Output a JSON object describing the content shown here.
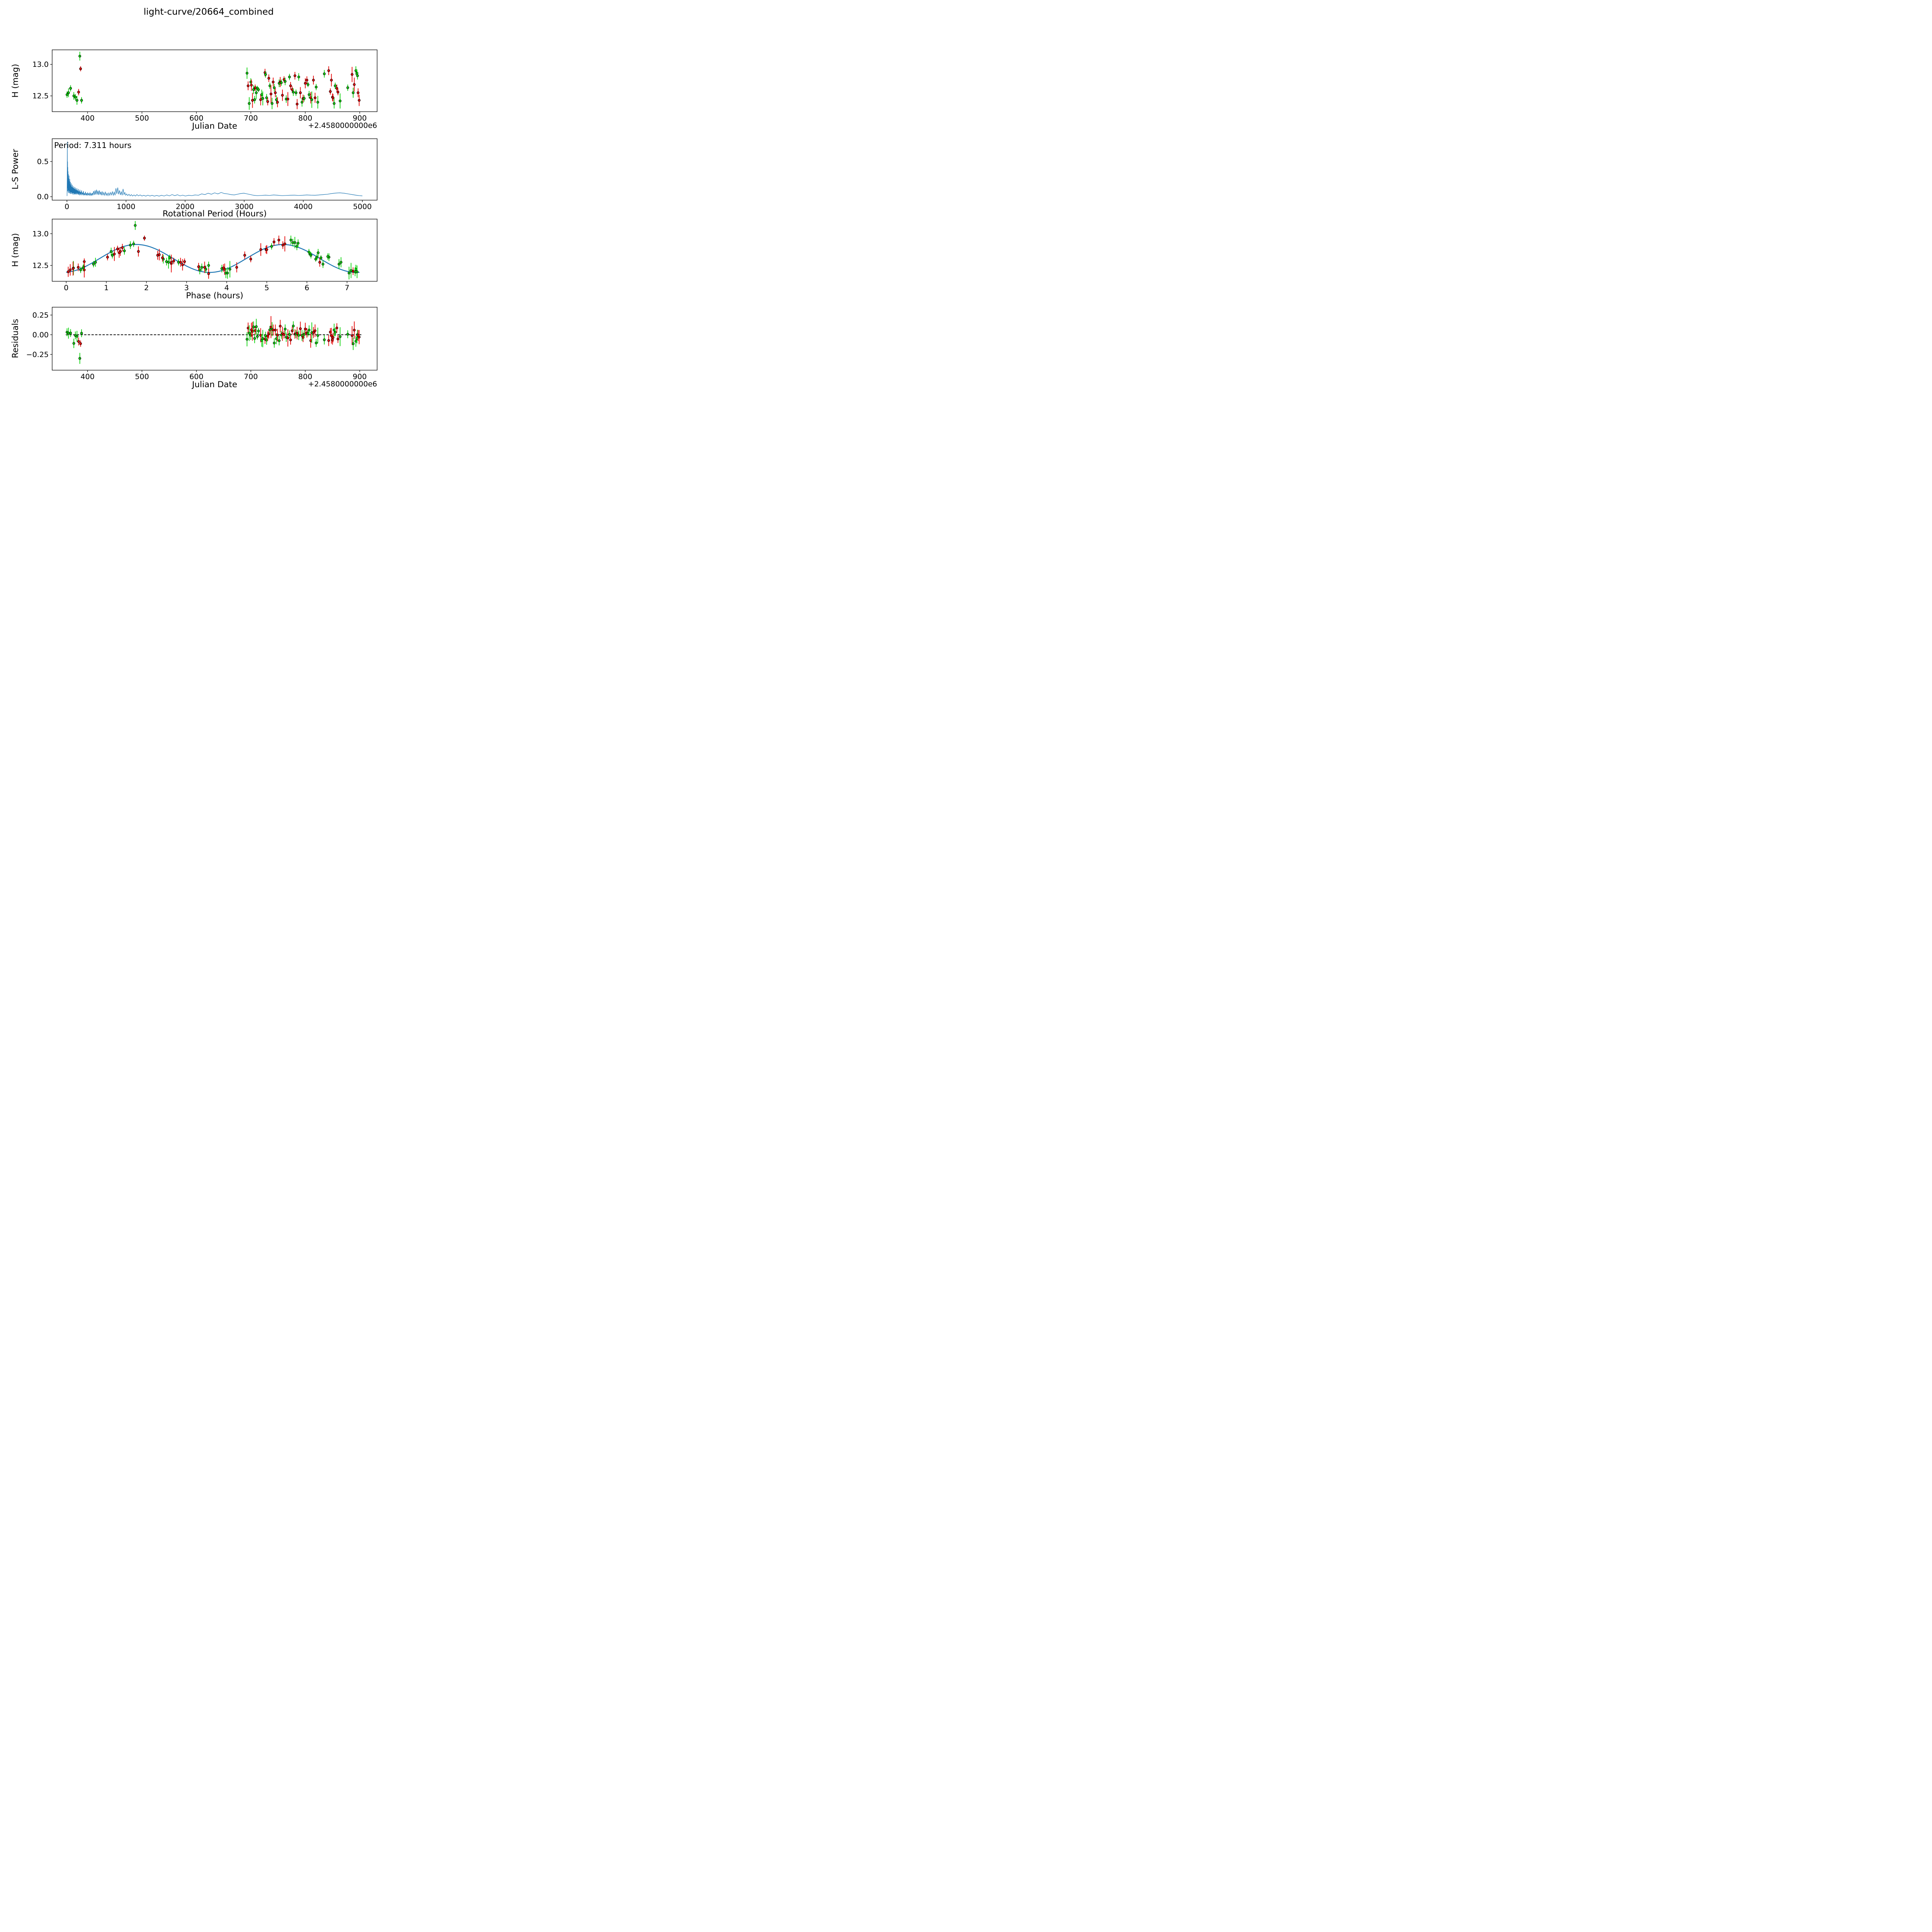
{
  "title": "light-curve/20664_combined",
  "colors": {
    "g": "#0bd30b",
    "r": "#e60000",
    "fit": "#1f77b4",
    "zero_line": "#000000",
    "marker_edge": "#000000",
    "axis": "#000000"
  },
  "marker": {
    "radius": 3,
    "edge_width": 1.0,
    "errorbar_width": 1.8
  },
  "chart_data": {
    "figure_title": "light-curve/20664_combined",
    "panels": [
      {
        "id": "jd_lightcurve",
        "type": "scatter",
        "xlabel": "Julian Date",
        "ylabel": "H (mag)",
        "x_offset_label": "+2.4580000000e6",
        "xlim": [
          335,
          932
        ],
        "ylim": [
          12.25,
          13.23
        ],
        "xticks": [
          400,
          500,
          600,
          700,
          800,
          900
        ],
        "xticklabels": [
          "400",
          "500",
          "600",
          "700",
          "800",
          "900"
        ],
        "yticks": [
          12.5,
          13.0
        ],
        "yticklabels": [
          "12.5",
          "13.0"
        ],
        "grid": false
      },
      {
        "id": "periodogram",
        "type": "line",
        "xlabel": "Rotational Period (Hours)",
        "ylabel": "L-S Power",
        "annotation": "Period: 7.311 hours",
        "xlim": [
          -250,
          5250
        ],
        "ylim": [
          -0.049,
          0.824
        ],
        "xticks": [
          0,
          1000,
          2000,
          3000,
          4000,
          5000
        ],
        "xticklabels": [
          "0",
          "1000",
          "2000",
          "3000",
          "4000",
          "5000"
        ],
        "yticks": [
          0.0,
          0.5
        ],
        "yticklabels": [
          "0.0",
          "0.5"
        ],
        "grid": false
      },
      {
        "id": "phase_lightcurve",
        "type": "scatter+fit",
        "xlabel": "Phase (hours)",
        "ylabel": "H (mag)",
        "xlim": [
          -0.35,
          7.75
        ],
        "ylim": [
          12.25,
          13.23
        ],
        "xticks": [
          0,
          1,
          2,
          3,
          4,
          5,
          6,
          7
        ],
        "xticklabels": [
          "0",
          "1",
          "2",
          "3",
          "4",
          "5",
          "6",
          "7"
        ],
        "yticks": [
          12.5,
          13.0
        ],
        "yticklabels": [
          "12.5",
          "13.0"
        ],
        "grid": false
      },
      {
        "id": "residuals",
        "type": "scatter",
        "xlabel": "Julian Date",
        "ylabel": "Residuals",
        "x_offset_label": "+2.4580000000e6",
        "xlim": [
          335,
          932
        ],
        "ylim": [
          -0.45,
          0.35
        ],
        "xticks": [
          400,
          500,
          600,
          700,
          800,
          900
        ],
        "xticklabels": [
          "400",
          "500",
          "600",
          "700",
          "800",
          "900"
        ],
        "yticks": [
          -0.25,
          0.0,
          0.25
        ],
        "yticklabels": [
          "−0.25",
          "0.00",
          "0.25"
        ],
        "zero_line": true,
        "zero_line_span_jd": [
          360,
          903
        ],
        "grid": false
      }
    ],
    "fit_model": {
      "mean_mag": 12.61,
      "amplitude_mag": 0.22,
      "period_hours": 7.311,
      "peak_phase_hours": 1.75,
      "cycles_per_period": 2,
      "note": "H(phase)=mean+A*cos(2*pi*cycles*(phase-peak)/period); residual plotted = model - mag"
    },
    "observations": [
      [
        362.3,
        0.68,
        12.52,
        0.05,
        "g"
      ],
      [
        365.0,
        0.73,
        12.55,
        0.07,
        "g"
      ],
      [
        368.8,
        2.58,
        12.62,
        0.05,
        "g"
      ],
      [
        374.8,
        3.55,
        12.5,
        0.06,
        "g"
      ],
      [
        377.6,
        0.44,
        12.48,
        0.05,
        "g"
      ],
      [
        380.6,
        3.33,
        12.43,
        0.07,
        "g"
      ],
      [
        383.6,
        0.45,
        12.56,
        0.05,
        "r"
      ],
      [
        385.8,
        1.72,
        13.13,
        0.07,
        "g"
      ],
      [
        387.2,
        1.95,
        12.93,
        0.04,
        "r"
      ],
      [
        389.0,
        0.36,
        12.43,
        0.05,
        "g"
      ],
      [
        693,
        5.7,
        12.86,
        0.09,
        "g"
      ],
      [
        695,
        2.28,
        12.66,
        0.07,
        "r"
      ],
      [
        697,
        7.05,
        12.38,
        0.1,
        "g"
      ],
      [
        700,
        1.12,
        12.72,
        0.06,
        "g"
      ],
      [
        701,
        2.32,
        12.67,
        0.09,
        "r"
      ],
      [
        703,
        0.45,
        12.43,
        0.12,
        "r"
      ],
      [
        705,
        2.42,
        12.6,
        0.07,
        "g"
      ],
      [
        707,
        3.48,
        12.44,
        0.06,
        "g"
      ],
      [
        708,
        1.03,
        12.63,
        0.05,
        "r"
      ],
      [
        710,
        2.55,
        12.55,
        0.1,
        "g"
      ],
      [
        712,
        6.35,
        12.62,
        0.04,
        "g"
      ],
      [
        714,
        6.22,
        12.6,
        0.04,
        "g"
      ],
      [
        718,
        3.95,
        12.44,
        0.09,
        "r"
      ],
      [
        720,
        6.8,
        12.52,
        0.08,
        "g"
      ],
      [
        722,
        0.18,
        12.46,
        0.11,
        "g"
      ],
      [
        726,
        5.18,
        12.87,
        0.06,
        "r"
      ],
      [
        727,
        1.68,
        12.84,
        0.05,
        "g"
      ],
      [
        729,
        3.38,
        12.47,
        0.06,
        "g"
      ],
      [
        731,
        7.15,
        12.41,
        0.06,
        "r"
      ],
      [
        733,
        1.4,
        12.78,
        0.06,
        "r"
      ],
      [
        735,
        1.15,
        12.66,
        0.05,
        "g"
      ],
      [
        737,
        2.62,
        12.53,
        0.14,
        "r"
      ],
      [
        739,
        4.02,
        12.38,
        0.09,
        "g"
      ],
      [
        741,
        1.35,
        12.72,
        0.07,
        "r"
      ],
      [
        743,
        6.55,
        12.63,
        0.06,
        "g"
      ],
      [
        745,
        6.32,
        12.55,
        0.07,
        "r"
      ],
      [
        747,
        7.22,
        12.44,
        0.07,
        "g"
      ],
      [
        749,
        0.05,
        12.4,
        0.08,
        "r"
      ],
      [
        752,
        6.28,
        12.7,
        0.06,
        "g"
      ],
      [
        754,
        1.8,
        12.72,
        0.08,
        "r"
      ],
      [
        756,
        6.05,
        12.71,
        0.05,
        "g"
      ],
      [
        758,
        2.9,
        12.51,
        0.09,
        "r"
      ],
      [
        761,
        1.28,
        12.76,
        0.05,
        "r"
      ],
      [
        763,
        1.45,
        12.73,
        0.06,
        "g"
      ],
      [
        765,
        3.88,
        12.45,
        0.06,
        "g"
      ],
      [
        768,
        0.17,
        12.45,
        0.11,
        "r"
      ],
      [
        771,
        5.12,
        12.8,
        0.05,
        "g"
      ],
      [
        773,
        4.45,
        12.66,
        0.06,
        "r"
      ],
      [
        776,
        4.6,
        12.6,
        0.05,
        "r"
      ],
      [
        778,
        2.5,
        12.56,
        0.06,
        "g"
      ],
      [
        781,
        5.4,
        12.82,
        0.06,
        "r"
      ],
      [
        783,
        2.8,
        12.55,
        0.05,
        "g"
      ],
      [
        785,
        3.55,
        12.37,
        0.08,
        "r"
      ],
      [
        788,
        5.75,
        12.8,
        0.06,
        "g"
      ],
      [
        791,
        2.62,
        12.55,
        0.09,
        "r"
      ],
      [
        794,
        7.2,
        12.4,
        0.07,
        "g"
      ],
      [
        796,
        3.92,
        12.46,
        0.06,
        "r"
      ],
      [
        798,
        0.42,
        12.46,
        0.05,
        "g"
      ],
      [
        800,
        1.32,
        12.7,
        0.08,
        "r"
      ],
      [
        803,
        4.98,
        12.75,
        0.06,
        "r"
      ],
      [
        805,
        6.08,
        12.68,
        0.04,
        "g"
      ],
      [
        807,
        6.4,
        12.52,
        0.06,
        "g"
      ],
      [
        810,
        3.45,
        12.47,
        0.09,
        "r"
      ],
      [
        812,
        4.08,
        12.44,
        0.13,
        "g"
      ],
      [
        815,
        5.0,
        12.75,
        0.07,
        "r"
      ],
      [
        818,
        4.25,
        12.47,
        0.08,
        "r"
      ],
      [
        820,
        6.52,
        12.64,
        0.05,
        "g"
      ],
      [
        823,
        7.25,
        12.4,
        0.1,
        "g"
      ],
      [
        835,
        5.78,
        12.85,
        0.06,
        "g"
      ],
      [
        843,
        5.3,
        12.9,
        0.07,
        "r"
      ],
      [
        846,
        2.68,
        12.57,
        0.05,
        "r"
      ],
      [
        848,
        4.85,
        12.75,
        0.1,
        "r"
      ],
      [
        850,
        3.3,
        12.48,
        0.06,
        "r"
      ],
      [
        851,
        0.3,
        12.47,
        0.06,
        "r"
      ],
      [
        853,
        3.98,
        12.38,
        0.08,
        "g"
      ],
      [
        855,
        6.1,
        12.66,
        0.05,
        "g"
      ],
      [
        858,
        2.4,
        12.62,
        0.06,
        "r"
      ],
      [
        860,
        2.95,
        12.56,
        0.05,
        "r"
      ],
      [
        864,
        7.1,
        12.42,
        0.12,
        "g"
      ],
      [
        878,
        6.25,
        12.63,
        0.05,
        "g"
      ],
      [
        886,
        5.45,
        12.84,
        0.12,
        "r"
      ],
      [
        888,
        6.85,
        12.55,
        0.08,
        "g"
      ],
      [
        890,
        1.2,
        12.68,
        0.11,
        "r"
      ],
      [
        893,
        5.6,
        12.9,
        0.07,
        "g"
      ],
      [
        895,
        5.65,
        12.86,
        0.06,
        "g"
      ],
      [
        896,
        1.6,
        12.82,
        0.06,
        "g"
      ],
      [
        897,
        2.85,
        12.55,
        0.07,
        "r"
      ],
      [
        899,
        0.1,
        12.43,
        0.09,
        "r"
      ]
    ],
    "periodogram_xy": [
      [
        2,
        0.01
      ],
      [
        5,
        0.28
      ],
      [
        7,
        0.78
      ],
      [
        9,
        0.12
      ],
      [
        11,
        0.5
      ],
      [
        13,
        0.08
      ],
      [
        15,
        0.42
      ],
      [
        17,
        0.1
      ],
      [
        19,
        0.36
      ],
      [
        21,
        0.06
      ],
      [
        24,
        0.32
      ],
      [
        27,
        0.09
      ],
      [
        30,
        0.26
      ],
      [
        33,
        0.05
      ],
      [
        36,
        0.3
      ],
      [
        39,
        0.08
      ],
      [
        42,
        0.22
      ],
      [
        45,
        0.05
      ],
      [
        48,
        0.25
      ],
      [
        51,
        0.07
      ],
      [
        54,
        0.18
      ],
      [
        57,
        0.04
      ],
      [
        60,
        0.21
      ],
      [
        63,
        0.06
      ],
      [
        66,
        0.16
      ],
      [
        70,
        0.04
      ],
      [
        74,
        0.19
      ],
      [
        78,
        0.06
      ],
      [
        82,
        0.14
      ],
      [
        86,
        0.04
      ],
      [
        90,
        0.17
      ],
      [
        94,
        0.05
      ],
      [
        98,
        0.13
      ],
      [
        102,
        0.03
      ],
      [
        106,
        0.15
      ],
      [
        110,
        0.05
      ],
      [
        115,
        0.12
      ],
      [
        120,
        0.03
      ],
      [
        125,
        0.14
      ],
      [
        130,
        0.04
      ],
      [
        135,
        0.11
      ],
      [
        140,
        0.03
      ],
      [
        145,
        0.13
      ],
      [
        150,
        0.04
      ],
      [
        156,
        0.1
      ],
      [
        162,
        0.03
      ],
      [
        168,
        0.12
      ],
      [
        174,
        0.04
      ],
      [
        180,
        0.09
      ],
      [
        186,
        0.03
      ],
      [
        192,
        0.11
      ],
      [
        198,
        0.03
      ],
      [
        205,
        0.08
      ],
      [
        212,
        0.02
      ],
      [
        219,
        0.1
      ],
      [
        226,
        0.03
      ],
      [
        233,
        0.07
      ],
      [
        240,
        0.02
      ],
      [
        248,
        0.09
      ],
      [
        256,
        0.03
      ],
      [
        264,
        0.06
      ],
      [
        272,
        0.02
      ],
      [
        280,
        0.08
      ],
      [
        288,
        0.02
      ],
      [
        296,
        0.05
      ],
      [
        305,
        0.02
      ],
      [
        314,
        0.07
      ],
      [
        323,
        0.02
      ],
      [
        332,
        0.05
      ],
      [
        341,
        0.015
      ],
      [
        350,
        0.06
      ],
      [
        360,
        0.02
      ],
      [
        370,
        0.05
      ],
      [
        380,
        0.015
      ],
      [
        390,
        0.06
      ],
      [
        400,
        0.02
      ],
      [
        410,
        0.045
      ],
      [
        420,
        0.015
      ],
      [
        430,
        0.055
      ],
      [
        440,
        0.02
      ],
      [
        452,
        0.08
      ],
      [
        464,
        0.025
      ],
      [
        476,
        0.09
      ],
      [
        488,
        0.03
      ],
      [
        500,
        0.1
      ],
      [
        512,
        0.03
      ],
      [
        524,
        0.085
      ],
      [
        536,
        0.025
      ],
      [
        548,
        0.09
      ],
      [
        560,
        0.03
      ],
      [
        572,
        0.07
      ],
      [
        584,
        0.02
      ],
      [
        596,
        0.075
      ],
      [
        610,
        0.02
      ],
      [
        624,
        0.06
      ],
      [
        638,
        0.02
      ],
      [
        652,
        0.065
      ],
      [
        666,
        0.02
      ],
      [
        680,
        0.05
      ],
      [
        695,
        0.015
      ],
      [
        710,
        0.055
      ],
      [
        725,
        0.02
      ],
      [
        740,
        0.06
      ],
      [
        755,
        0.025
      ],
      [
        770,
        0.07
      ],
      [
        785,
        0.02
      ],
      [
        800,
        0.065
      ],
      [
        815,
        0.02
      ],
      [
        830,
        0.12
      ],
      [
        845,
        0.04
      ],
      [
        860,
        0.13
      ],
      [
        875,
        0.035
      ],
      [
        890,
        0.09
      ],
      [
        905,
        0.025
      ],
      [
        920,
        0.07
      ],
      [
        935,
        0.02
      ],
      [
        950,
        0.11
      ],
      [
        965,
        0.03
      ],
      [
        980,
        0.06
      ],
      [
        995,
        0.02
      ],
      [
        1010,
        0.04
      ],
      [
        1030,
        0.015
      ],
      [
        1050,
        0.035
      ],
      [
        1070,
        0.012
      ],
      [
        1090,
        0.03
      ],
      [
        1110,
        0.01
      ],
      [
        1135,
        0.025
      ],
      [
        1160,
        0.01
      ],
      [
        1185,
        0.03
      ],
      [
        1210,
        0.012
      ],
      [
        1240,
        0.025
      ],
      [
        1270,
        0.01
      ],
      [
        1300,
        0.02
      ],
      [
        1335,
        0.008
      ],
      [
        1370,
        0.022
      ],
      [
        1405,
        0.01
      ],
      [
        1440,
        0.02
      ],
      [
        1480,
        0.008
      ],
      [
        1520,
        0.018
      ],
      [
        1560,
        0.008
      ],
      [
        1600,
        0.02
      ],
      [
        1645,
        0.01
      ],
      [
        1690,
        0.025
      ],
      [
        1735,
        0.012
      ],
      [
        1780,
        0.03
      ],
      [
        1825,
        0.015
      ],
      [
        1870,
        0.028
      ],
      [
        1915,
        0.012
      ],
      [
        1960,
        0.022
      ],
      [
        2005,
        0.01
      ],
      [
        2060,
        0.02
      ],
      [
        2115,
        0.015
      ],
      [
        2170,
        0.025
      ],
      [
        2225,
        0.02
      ],
      [
        2280,
        0.04
      ],
      [
        2335,
        0.03
      ],
      [
        2390,
        0.05
      ],
      [
        2445,
        0.035
      ],
      [
        2500,
        0.055
      ],
      [
        2555,
        0.04
      ],
      [
        2610,
        0.06
      ],
      [
        2665,
        0.045
      ],
      [
        2720,
        0.04
      ],
      [
        2775,
        0.03
      ],
      [
        2830,
        0.025
      ],
      [
        2885,
        0.035
      ],
      [
        2940,
        0.045
      ],
      [
        2995,
        0.05
      ],
      [
        3050,
        0.04
      ],
      [
        3105,
        0.03
      ],
      [
        3160,
        0.02
      ],
      [
        3220,
        0.015
      ],
      [
        3290,
        0.018
      ],
      [
        3360,
        0.022
      ],
      [
        3430,
        0.018
      ],
      [
        3500,
        0.025
      ],
      [
        3570,
        0.02
      ],
      [
        3640,
        0.015
      ],
      [
        3710,
        0.018
      ],
      [
        3780,
        0.02
      ],
      [
        3850,
        0.022
      ],
      [
        3920,
        0.018
      ],
      [
        3990,
        0.02
      ],
      [
        4060,
        0.025
      ],
      [
        4130,
        0.022
      ],
      [
        4200,
        0.02
      ],
      [
        4270,
        0.025
      ],
      [
        4340,
        0.03
      ],
      [
        4410,
        0.035
      ],
      [
        4480,
        0.045
      ],
      [
        4550,
        0.052
      ],
      [
        4620,
        0.055
      ],
      [
        4690,
        0.05
      ],
      [
        4760,
        0.04
      ],
      [
        4830,
        0.03
      ],
      [
        4900,
        0.02
      ],
      [
        4950,
        0.015
      ],
      [
        5000,
        0.012
      ]
    ]
  }
}
